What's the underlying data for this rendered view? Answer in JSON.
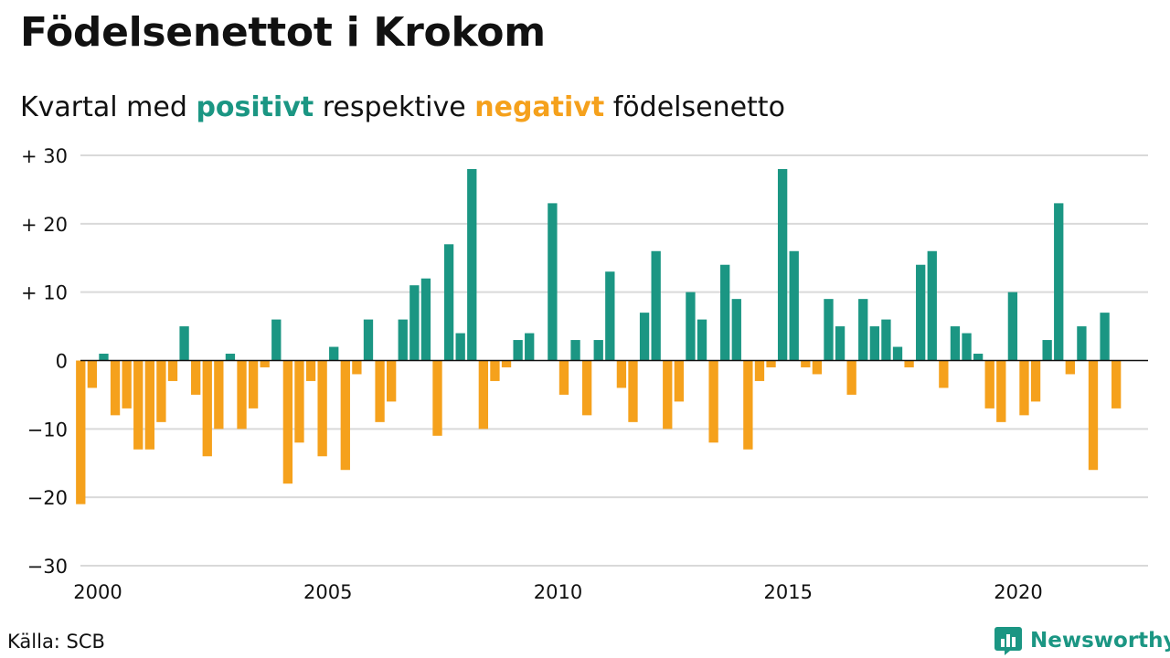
{
  "title": "Födelsenettot i Krokom",
  "subtitle": {
    "prefix": "Kvartal med",
    "positive_word": "positivt",
    "middle": "respektive",
    "negative_word": "negativt",
    "suffix": "födelsenetto"
  },
  "colors": {
    "positive": "#1b9683",
    "negative": "#f5a11c",
    "grid": "#d9d9d9",
    "axis": "#111111"
  },
  "source": "Källa: SCB",
  "brand": {
    "name": "Newsworthy",
    "icon": "newsworthy-logo-icon"
  },
  "chart_data": {
    "type": "bar",
    "title": "Födelsenettot i Krokom",
    "start_year": 2000,
    "frequency": "quarterly",
    "ylim": [
      -30,
      30
    ],
    "yticks": [
      30,
      20,
      10,
      0,
      -10,
      -20,
      -30
    ],
    "ytick_labels": [
      "+ 30",
      "+ 20",
      "+ 10",
      "0",
      "−10",
      "−20",
      "−30"
    ],
    "xticks": [
      2000,
      2005,
      2010,
      2015,
      2020
    ],
    "xtick_labels": [
      "2000",
      "2005",
      "2010",
      "2015",
      "2020"
    ],
    "grid": true,
    "values": [
      -21,
      -4,
      1,
      -8,
      -7,
      -13,
      -13,
      -9,
      -3,
      5,
      -5,
      -14,
      -10,
      1,
      -10,
      -7,
      -1,
      6,
      -18,
      -12,
      -3,
      -14,
      2,
      -16,
      -2,
      6,
      -9,
      -6,
      6,
      11,
      12,
      -11,
      17,
      4,
      28,
      -10,
      -3,
      -1,
      3,
      4,
      0,
      23,
      -5,
      3,
      -8,
      3,
      13,
      -4,
      -9,
      7,
      16,
      -10,
      -6,
      10,
      6,
      -12,
      14,
      9,
      -13,
      -3,
      -1,
      28,
      16,
      -1,
      -2,
      9,
      5,
      -5,
      9,
      5,
      6,
      2,
      -1,
      14,
      16,
      -4,
      5,
      4,
      1,
      -7,
      -9,
      10,
      -8,
      -6,
      3,
      23,
      -2,
      5,
      -16,
      7,
      -7
    ]
  }
}
